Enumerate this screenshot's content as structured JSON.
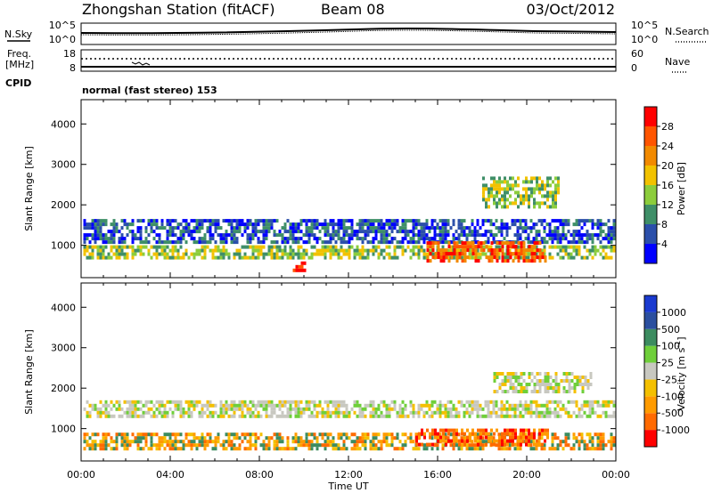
{
  "header": {
    "station": "Zhongshan Station (fitACF)",
    "beam": "Beam 08",
    "date": "03/Oct/2012"
  },
  "summary": {
    "nsky_label": "N.Sky",
    "nsky_ticks": [
      "10^5",
      "10^0"
    ],
    "nsearch_label": "N.Search",
    "nsearch_ticks": [
      "10^5",
      "10^0"
    ],
    "freq_label_1": "Freq.",
    "freq_label_2": "[MHz]",
    "freq_ticks": [
      "18",
      "8"
    ],
    "nave_label": "Nave",
    "nave_ticks": [
      "60",
      "0"
    ],
    "cpid_label": "CPID",
    "mode_text": "normal (fast stereo) 153"
  },
  "chart_data": [
    {
      "type": "heatmap",
      "name": "power",
      "ylabel": "Slant Range [km]",
      "yticks": [
        "1000",
        "2000",
        "3000",
        "4000"
      ],
      "ylim": [
        200,
        4600
      ],
      "xlim_hours": [
        0,
        24
      ],
      "colorbar_label": "Power [dB]",
      "colorbar_ticks": [
        "28",
        "24",
        "20",
        "16",
        "12",
        "8",
        "4"
      ],
      "colorbar_colors": [
        "#0000ff",
        "#2b4faa",
        "#3f8f68",
        "#8ccd3c",
        "#f2c200",
        "#f28a00",
        "#ff5500",
        "#ff0000"
      ],
      "echo_regions": [
        {
          "t": [
            0.1,
            24
          ],
          "range": [
            600,
            1000
          ],
          "level": "16-24 dB"
        },
        {
          "t": [
            0.1,
            24
          ],
          "range": [
            1000,
            1650
          ],
          "level": "4-12 dB"
        },
        {
          "t": [
            9.5,
            10.1
          ],
          "range": [
            300,
            600
          ],
          "level": "24-28 dB"
        },
        {
          "t": [
            15.5,
            21
          ],
          "range": [
            500,
            1100
          ],
          "level": "24-28 dB"
        },
        {
          "t": [
            18,
            21.5
          ],
          "range": [
            1900,
            2700
          ],
          "level": "8-20 dB"
        }
      ]
    },
    {
      "type": "heatmap",
      "name": "velocity",
      "xlabel": "Time UT",
      "ylabel": "Slant Range [km]",
      "yticks": [
        "1000",
        "2000",
        "3000",
        "4000"
      ],
      "ylim": [
        200,
        4600
      ],
      "xticks": [
        "00:00",
        "04:00",
        "08:00",
        "12:00",
        "16:00",
        "20:00",
        "00:00"
      ],
      "xlim_hours": [
        0,
        24
      ],
      "colorbar_label": "Velocity [m s",
      "colorbar_label_sup": "-1",
      "colorbar_label_end": "]",
      "colorbar_ticks": [
        "1000",
        "500",
        "100",
        "25",
        "-25",
        "-100",
        "-500",
        "-1000"
      ],
      "colorbar_colors": [
        "#ff0000",
        "#ff6a00",
        "#ff9b00",
        "#f4c000",
        "#c8c8c0",
        "#6fcf3a",
        "#3c8c60",
        "#2b4f9f",
        "#1a3ad0"
      ],
      "echo_regions": [
        {
          "t": [
            0.1,
            24
          ],
          "range": [
            400,
            900
          ],
          "level": "-25 to -500 m/s"
        },
        {
          "t": [
            0.1,
            24
          ],
          "range": [
            1200,
            1700
          ],
          "level": "-25 to 25 m/s"
        },
        {
          "t": [
            15,
            21
          ],
          "range": [
            500,
            1000
          ],
          "level": "-100 to -1000 m/s"
        },
        {
          "t": [
            18.5,
            23
          ],
          "range": [
            1800,
            2400
          ],
          "level": "-25 to 25 m/s"
        }
      ]
    }
  ]
}
